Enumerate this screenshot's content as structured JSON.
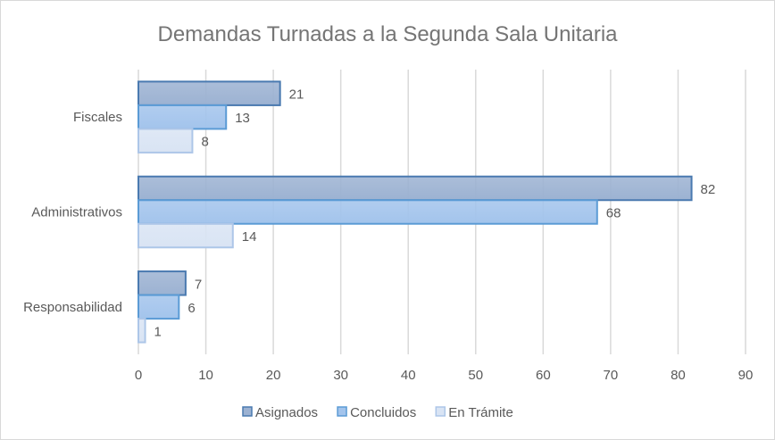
{
  "chart_data": {
    "type": "bar",
    "orientation": "horizontal",
    "title": "Demandas  Turnadas  a la Segunda  Sala Unitaria",
    "categories": [
      "Fiscales",
      "Administrativos",
      "Responsabilidad"
    ],
    "series": [
      {
        "name": "Asignados",
        "values": [
          21,
          82,
          7
        ],
        "color": "#9cb2d2",
        "border": "#4a7ab0"
      },
      {
        "name": "Concluidos",
        "values": [
          13,
          68,
          6
        ],
        "color": "#a3c4ec",
        "border": "#5b9bd5"
      },
      {
        "name": "En Trámite",
        "values": [
          8,
          14,
          1
        ],
        "color": "#d9e4f4",
        "border": "#adc6e8"
      }
    ],
    "xlim": [
      0,
      90
    ],
    "xticks": [
      0,
      10,
      20,
      30,
      40,
      50,
      60,
      70,
      80,
      90
    ],
    "xlabel": "",
    "ylabel": "",
    "grid": true,
    "legend": "bottom",
    "data_labels": true
  }
}
